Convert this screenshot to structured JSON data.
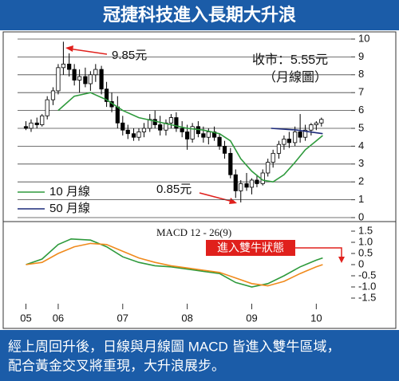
{
  "header": {
    "title": "冠捷科技進入長期大升浪"
  },
  "caption": [
    "經上周回升後，日線與月線圖 MACD 皆進入雙牛區域，",
    "配合黃金交叉將重現，大升浪展步。"
  ],
  "chart_data": [
    {
      "type": "candlestick",
      "x": [
        2005.5,
        2005.58,
        2005.67,
        2005.75,
        2005.83,
        2005.92,
        2006.0,
        2006.08,
        2006.17,
        2006.25,
        2006.33,
        2006.42,
        2006.5,
        2006.58,
        2006.67,
        2006.75,
        2006.83,
        2006.92,
        2007.0,
        2007.08,
        2007.17,
        2007.25,
        2007.33,
        2007.42,
        2007.5,
        2007.58,
        2007.67,
        2007.75,
        2007.83,
        2007.92,
        2008.0,
        2008.08,
        2008.17,
        2008.25,
        2008.33,
        2008.42,
        2008.5,
        2008.58,
        2008.67,
        2008.75,
        2008.83,
        2008.92,
        2009.0,
        2009.08,
        2009.17,
        2009.25,
        2009.33,
        2009.42,
        2009.5,
        2009.58,
        2009.67,
        2009.75,
        2009.83,
        2009.92,
        2010.0,
        2010.08
      ],
      "open": [
        5.1,
        5.0,
        5.3,
        5.2,
        5.7,
        6.6,
        7.1,
        8.4,
        8.6,
        8.3,
        7.7,
        7.9,
        7.5,
        8.0,
        8.3,
        7.2,
        6.5,
        6.2,
        5.3,
        4.9,
        4.7,
        4.5,
        4.8,
        5.0,
        5.5,
        5.2,
        4.9,
        5.3,
        5.6,
        5.0,
        4.8,
        4.4,
        5.1,
        4.7,
        4.5,
        4.8,
        4.5,
        4.0,
        3.6,
        2.4,
        1.5,
        1.9,
        1.7,
        2.1,
        1.9,
        2.5,
        3.1,
        3.6,
        4.1,
        4.4,
        4.2,
        4.8,
        4.5,
        4.9,
        5.2,
        5.3
      ],
      "high": [
        5.4,
        5.5,
        5.6,
        5.8,
        6.8,
        7.3,
        8.6,
        9.85,
        9.2,
        8.6,
        8.3,
        8.4,
        8.2,
        8.6,
        8.5,
        7.6,
        7.0,
        6.8,
        5.7,
        5.2,
        5.0,
        5.0,
        5.3,
        5.8,
        6.0,
        5.7,
        5.5,
        5.8,
        5.9,
        5.4,
        5.2,
        5.3,
        5.4,
        5.1,
        5.0,
        5.1,
        4.7,
        4.3,
        3.9,
        2.7,
        2.1,
        2.5,
        2.2,
        2.4,
        2.7,
        3.3,
        3.8,
        4.3,
        4.6,
        4.8,
        5.1,
        5.8,
        5.2,
        5.3,
        5.4,
        5.6
      ],
      "low": [
        4.9,
        4.8,
        5.0,
        5.1,
        5.5,
        6.3,
        6.9,
        8.0,
        7.9,
        7.4,
        7.0,
        7.3,
        7.1,
        7.6,
        6.9,
        6.2,
        5.9,
        5.0,
        4.6,
        4.4,
        4.3,
        4.3,
        4.5,
        4.8,
        5.0,
        4.6,
        4.6,
        5.0,
        4.8,
        4.5,
        3.8,
        4.2,
        4.5,
        4.2,
        4.1,
        4.3,
        3.8,
        3.3,
        2.2,
        1.1,
        0.85,
        1.5,
        1.3,
        1.7,
        1.8,
        2.3,
        2.8,
        3.3,
        3.8,
        3.9,
        4.0,
        4.2,
        4.3,
        4.6,
        4.9,
        5.1
      ],
      "close": [
        5.0,
        5.3,
        5.2,
        5.7,
        6.6,
        7.1,
        8.4,
        8.6,
        8.3,
        7.7,
        7.9,
        7.5,
        8.0,
        8.3,
        7.2,
        6.5,
        6.2,
        5.3,
        4.9,
        4.7,
        4.5,
        4.8,
        5.0,
        5.5,
        5.2,
        4.9,
        5.3,
        5.6,
        5.0,
        4.8,
        4.4,
        5.1,
        4.7,
        4.5,
        4.8,
        4.5,
        4.0,
        3.6,
        2.4,
        1.5,
        1.9,
        1.7,
        2.1,
        1.9,
        2.5,
        3.1,
        3.6,
        4.1,
        4.4,
        4.2,
        4.8,
        4.5,
        4.9,
        5.2,
        5.3,
        5.5
      ],
      "up_color": "#ffffff",
      "down_color": "#000000",
      "series": [
        {
          "name": "10 月線",
          "color": "#2e9a3c",
          "x": [
            2006.0,
            2006.25,
            2006.5,
            2006.75,
            2007.0,
            2007.25,
            2007.5,
            2007.75,
            2008.0,
            2008.25,
            2008.5,
            2008.67,
            2008.83,
            2009.0,
            2009.17,
            2009.33,
            2009.5,
            2009.67,
            2009.83,
            2010.0,
            2010.1
          ],
          "values": [
            6.0,
            6.8,
            7.0,
            6.6,
            6.0,
            5.6,
            5.4,
            5.2,
            5.0,
            4.9,
            4.7,
            4.3,
            3.3,
            2.6,
            2.1,
            2.0,
            2.4,
            3.1,
            3.8,
            4.3,
            4.6
          ]
        },
        {
          "name": "50 月線",
          "color": "#1c2a7a",
          "x": [
            2009.3,
            2009.7,
            2010.1
          ],
          "values": [
            5.0,
            4.9,
            4.7
          ]
        }
      ],
      "legend": "lower-left",
      "annotations": [
        "9.85元",
        "0.85元",
        "收市：5.55元",
        "（月線圖）"
      ],
      "xlim": [
        2005.37,
        2010.54
      ],
      "ylim": [
        0,
        10
      ],
      "yticks": [
        0,
        1,
        2,
        3,
        4,
        5,
        6,
        7,
        8,
        9,
        10
      ],
      "grid": true
    },
    {
      "type": "line",
      "title": "MACD 12 - 26(9)",
      "series": [
        {
          "color": "#2e9a3c",
          "x": [
            2005.5,
            2005.75,
            2006.0,
            2006.2,
            2006.5,
            2006.75,
            2007.0,
            2007.25,
            2007.5,
            2007.75,
            2008.0,
            2008.25,
            2008.5,
            2008.75,
            2009.0,
            2009.25,
            2009.5,
            2009.75,
            2010.0,
            2010.1
          ],
          "values": [
            0,
            0.25,
            0.9,
            1.15,
            1.1,
            0.8,
            0.35,
            0.1,
            -0.05,
            -0.1,
            -0.2,
            -0.3,
            -0.4,
            -0.8,
            -1.0,
            -0.85,
            -0.5,
            -0.1,
            0.2,
            0.3
          ]
        },
        {
          "color": "#f08a1c",
          "x": [
            2005.5,
            2005.75,
            2006.0,
            2006.25,
            2006.5,
            2006.75,
            2007.0,
            2007.25,
            2007.5,
            2007.75,
            2008.0,
            2008.25,
            2008.5,
            2008.75,
            2009.0,
            2009.25,
            2009.5,
            2009.75,
            2010.0,
            2010.1
          ],
          "values": [
            0,
            0.1,
            0.5,
            0.8,
            0.95,
            0.9,
            0.6,
            0.3,
            0.1,
            -0.05,
            -0.15,
            -0.25,
            -0.35,
            -0.6,
            -0.85,
            -0.95,
            -0.75,
            -0.4,
            -0.1,
            0.0
          ]
        }
      ],
      "annotations": [
        "進入雙牛狀態"
      ],
      "xlim": [
        2005.37,
        2010.54
      ],
      "xticks": [
        {
          "value": 2005.5,
          "label": "05"
        },
        {
          "value": 2006,
          "label": "06"
        },
        {
          "value": 2007,
          "label": "07"
        },
        {
          "value": 2008,
          "label": "08"
        },
        {
          "value": 2009,
          "label": "09"
        },
        {
          "value": 2010,
          "label": "10"
        }
      ],
      "ylim": [
        -1.75,
        1.75
      ],
      "yticks": [
        1.5,
        {
          "value": 1,
          "label": "1.0"
        },
        0.5,
        0,
        -0.5,
        {
          "value": -1,
          "label": "-1.0"
        },
        -1.5
      ],
      "grid": false
    }
  ]
}
